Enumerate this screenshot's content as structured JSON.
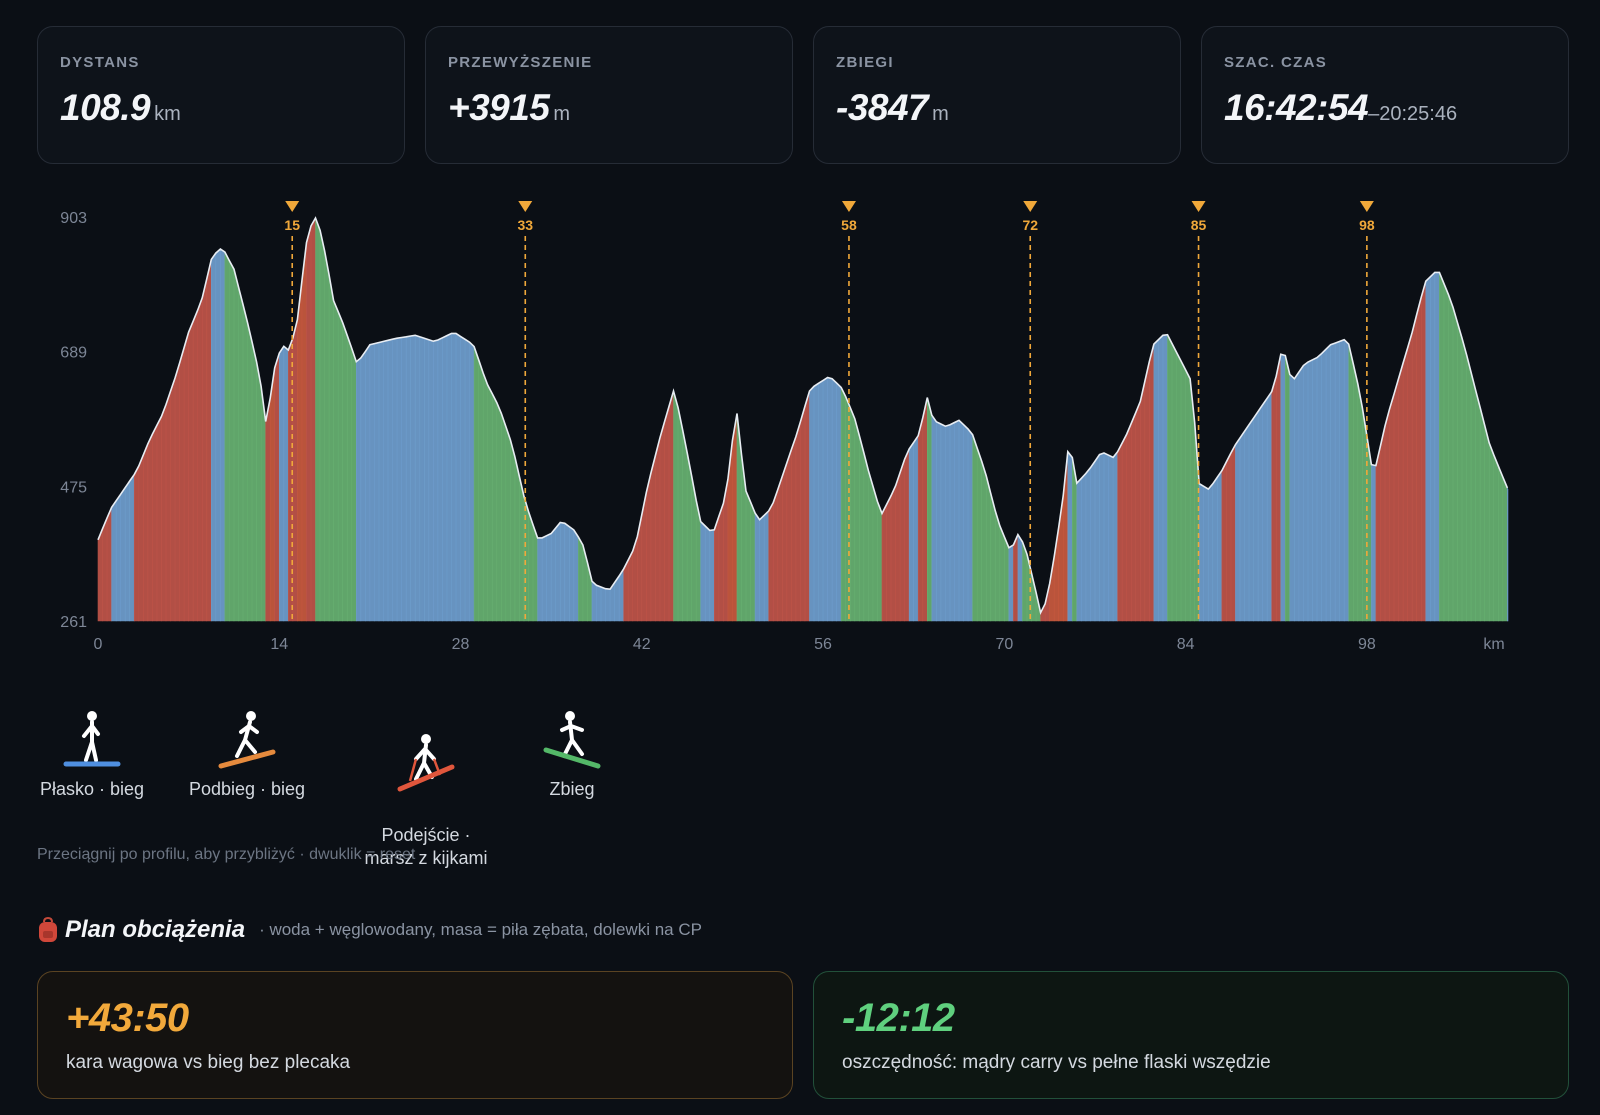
{
  "stats": [
    {
      "label": "DYSTANS",
      "value": "108.9",
      "unit": "km",
      "extra": ""
    },
    {
      "label": "PRZEWYŻSZENIE",
      "value": "+3915",
      "unit": "m",
      "extra": ""
    },
    {
      "label": "ZBIEGI",
      "value": "-3847",
      "unit": "m",
      "extra": ""
    },
    {
      "label": "SZAC. CZAS",
      "value": "16:42:54",
      "unit": "",
      "extra": "–20:25:46"
    }
  ],
  "chart_data": {
    "type": "area",
    "x_unit": "km",
    "y_ticks": [
      903,
      689,
      475,
      261
    ],
    "x_ticks": [
      0,
      14,
      28,
      42,
      56,
      70,
      84,
      98
    ],
    "ylim": [
      261,
      903
    ],
    "xlim": [
      0,
      108.9
    ],
    "checkpoints": [
      15,
      33,
      58,
      72,
      85,
      98
    ],
    "profile": [
      [
        0,
        390
      ],
      [
        1,
        440
      ],
      [
        2,
        470
      ],
      [
        3,
        500
      ],
      [
        4,
        550
      ],
      [
        5,
        590
      ],
      [
        6,
        650
      ],
      [
        7,
        720
      ],
      [
        8,
        770
      ],
      [
        8.8,
        840
      ],
      [
        9.6,
        855
      ],
      [
        10.5,
        820
      ],
      [
        11.5,
        740
      ],
      [
        12.5,
        650
      ],
      [
        13,
        570
      ],
      [
        13.6,
        660
      ],
      [
        14.2,
        700
      ],
      [
        14.8,
        690
      ],
      [
        15.4,
        740
      ],
      [
        16.2,
        880
      ],
      [
        16.9,
        905
      ],
      [
        17.6,
        840
      ],
      [
        18.2,
        770
      ],
      [
        19,
        730
      ],
      [
        20,
        670
      ],
      [
        21,
        700
      ],
      [
        23,
        710
      ],
      [
        24.5,
        715
      ],
      [
        26,
        705
      ],
      [
        27.5,
        720
      ],
      [
        29,
        700
      ],
      [
        30,
        640
      ],
      [
        31,
        600
      ],
      [
        32,
        540
      ],
      [
        33,
        450
      ],
      [
        34,
        390
      ],
      [
        35,
        400
      ],
      [
        35.8,
        420
      ],
      [
        36.8,
        405
      ],
      [
        37.5,
        380
      ],
      [
        38.2,
        320
      ],
      [
        39.5,
        310
      ],
      [
        40.5,
        340
      ],
      [
        41.5,
        380
      ],
      [
        42.5,
        480
      ],
      [
        43.5,
        560
      ],
      [
        44.5,
        630
      ],
      [
        45.4,
        540
      ],
      [
        46.5,
        420
      ],
      [
        47.5,
        400
      ],
      [
        48.5,
        460
      ],
      [
        49.3,
        600
      ],
      [
        50,
        470
      ],
      [
        51,
        420
      ],
      [
        52,
        440
      ],
      [
        53,
        500
      ],
      [
        54,
        560
      ],
      [
        55,
        630
      ],
      [
        56.5,
        650
      ],
      [
        57.5,
        630
      ],
      [
        58.5,
        580
      ],
      [
        59.5,
        500
      ],
      [
        60.5,
        430
      ],
      [
        61.5,
        470
      ],
      [
        62.5,
        530
      ],
      [
        63.5,
        560
      ],
      [
        64,
        620
      ],
      [
        64.5,
        580
      ],
      [
        65.5,
        570
      ],
      [
        66.5,
        580
      ],
      [
        67.5,
        560
      ],
      [
        68.5,
        500
      ],
      [
        69.5,
        420
      ],
      [
        70.5,
        370
      ],
      [
        71,
        400
      ],
      [
        71.6,
        380
      ],
      [
        72.3,
        320
      ],
      [
        72.9,
        265
      ],
      [
        73.6,
        330
      ],
      [
        74.5,
        450
      ],
      [
        75,
        550
      ],
      [
        75.6,
        480
      ],
      [
        76.5,
        500
      ],
      [
        77.5,
        530
      ],
      [
        78.5,
        520
      ],
      [
        79.5,
        560
      ],
      [
        80.5,
        610
      ],
      [
        81.5,
        700
      ],
      [
        82.5,
        720
      ],
      [
        83.5,
        680
      ],
      [
        84.5,
        640
      ],
      [
        85,
        480
      ],
      [
        85.8,
        470
      ],
      [
        86.8,
        500
      ],
      [
        87.8,
        540
      ],
      [
        88.8,
        570
      ],
      [
        89.8,
        600
      ],
      [
        90.8,
        630
      ],
      [
        91.5,
        700
      ],
      [
        92.2,
        640
      ],
      [
        93.2,
        670
      ],
      [
        94.2,
        680
      ],
      [
        95.2,
        700
      ],
      [
        96.5,
        710
      ],
      [
        97.5,
        620
      ],
      [
        98.5,
        490
      ],
      [
        99.5,
        580
      ],
      [
        100.5,
        650
      ],
      [
        101.5,
        720
      ],
      [
        102.5,
        800
      ],
      [
        103.5,
        820
      ],
      [
        104.5,
        770
      ],
      [
        105.5,
        700
      ],
      [
        106.5,
        620
      ],
      [
        107.5,
        540
      ],
      [
        108.9,
        470
      ]
    ],
    "segment_colors": {
      "flat": "#6f9fcf",
      "uphill": "#c1554a",
      "climb": "#c95a3f",
      "downhill": "#68b272"
    }
  },
  "legend": [
    {
      "label": "Płasko · bieg",
      "color": "#4f8fe0"
    },
    {
      "label": "Podbieg · bieg",
      "color": "#e58a3d"
    },
    {
      "label": "Podejście ·\nmarsz z kijkami",
      "color": "#e0563c"
    },
    {
      "label": "Zbieg",
      "color": "#54b868"
    }
  ],
  "hint": "Przeciągnij po profilu, aby przybliżyć · dwuklik = reset",
  "plan": {
    "icon": "backpack-icon",
    "title": "Plan obciążenia",
    "subtitle": "· woda + węglowodany, masa = piła zębata, dolewki na CP",
    "cards": [
      {
        "value": "+43:50",
        "desc": "kara wagowa vs bieg bez plecaka"
      },
      {
        "value": "-12:12",
        "desc": "oszczędność: mądry carry vs pełne flaski wszędzie"
      }
    ]
  }
}
